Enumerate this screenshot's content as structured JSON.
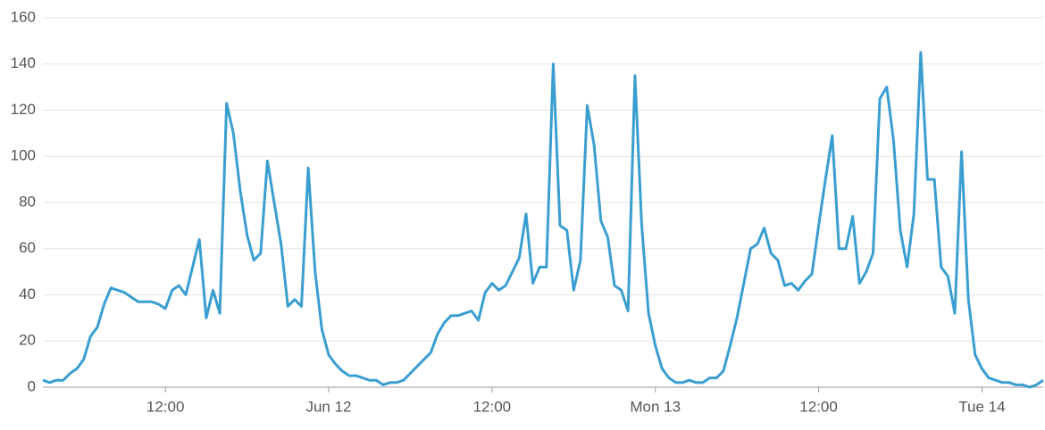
{
  "chart_data": {
    "type": "line",
    "color": "#3a9ed1",
    "ylim": [
      0,
      160
    ],
    "yticks": [
      0,
      20,
      40,
      60,
      80,
      100,
      120,
      140,
      160
    ],
    "grid": true,
    "categories": [
      null,
      null,
      null,
      null,
      null,
      null,
      null,
      null,
      null,
      null,
      null,
      null,
      null,
      null,
      null,
      null,
      null,
      null,
      "12:00",
      null,
      null,
      null,
      null,
      null,
      null,
      null,
      null,
      null,
      null,
      null,
      null,
      null,
      null,
      null,
      null,
      null,
      null,
      null,
      null,
      null,
      null,
      null,
      "Jun 12",
      null,
      null,
      null,
      null,
      null,
      null,
      null,
      null,
      null,
      null,
      null,
      null,
      null,
      null,
      null,
      null,
      null,
      null,
      null,
      null,
      null,
      null,
      null,
      "12:00",
      null,
      null,
      null,
      null,
      null,
      null,
      null,
      null,
      null,
      null,
      null,
      null,
      null,
      null,
      null,
      null,
      null,
      null,
      null,
      null,
      null,
      null,
      null,
      "Mon 13",
      null,
      null,
      null,
      null,
      null,
      null,
      null,
      null,
      null,
      null,
      null,
      null,
      null,
      null,
      null,
      null,
      null,
      null,
      null,
      null,
      null,
      null,
      null,
      "12:00",
      null,
      null,
      null,
      null,
      null,
      null,
      null,
      null,
      null,
      null,
      null,
      null,
      null,
      null,
      null,
      null,
      null,
      null,
      null,
      null,
      null,
      null,
      null,
      "Tue 14",
      null,
      null,
      null,
      null,
      null,
      null,
      null,
      null,
      null
    ],
    "values": [
      3,
      2,
      3,
      3,
      6,
      8,
      12,
      22,
      26,
      36,
      43,
      42,
      41,
      39,
      37,
      37,
      37,
      36,
      34,
      42,
      44,
      40,
      52,
      64,
      30,
      42,
      32,
      123,
      110,
      85,
      66,
      55,
      58,
      98,
      80,
      62,
      35,
      38,
      35,
      95,
      50,
      25,
      14,
      10,
      7,
      5,
      5,
      4,
      3,
      3,
      1,
      2,
      2,
      3,
      6,
      9,
      12,
      15,
      23,
      28,
      31,
      31,
      32,
      33,
      29,
      41,
      45,
      42,
      44,
      50,
      56,
      75,
      45,
      52,
      52,
      140,
      70,
      68,
      42,
      55,
      122,
      105,
      72,
      65,
      44,
      42,
      33,
      135,
      70,
      32,
      18,
      8,
      4,
      2,
      2,
      3,
      2,
      2,
      4,
      4,
      7,
      18,
      30,
      45,
      60,
      62,
      69,
      58,
      55,
      44,
      45,
      42,
      46,
      49,
      70,
      90,
      109,
      60,
      60,
      74,
      45,
      50,
      58,
      125,
      130,
      107,
      68,
      52,
      75,
      145,
      90,
      90,
      52,
      48,
      32,
      102,
      38,
      14,
      8,
      4,
      3,
      2,
      2,
      1,
      1,
      0,
      1,
      3
    ]
  }
}
